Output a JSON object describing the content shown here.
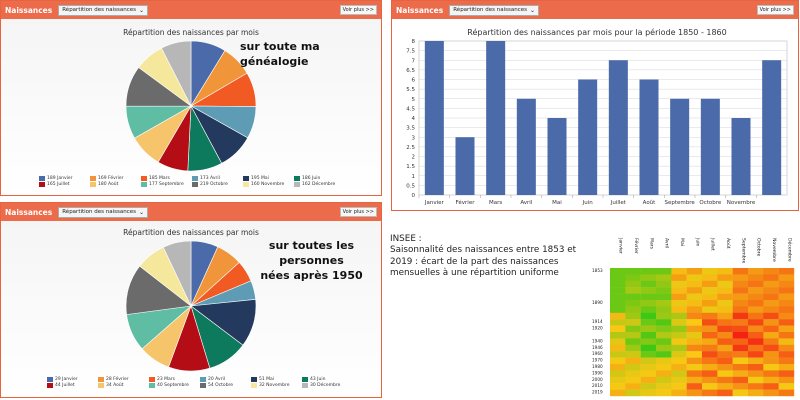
{
  "panels": {
    "pie1": {
      "header": "Naissances",
      "select": "Répartition des naissances",
      "more": "Voir plus >>",
      "title": "Répartition des naissances par mois",
      "overlay": "sur toute ma généalogie",
      "legend": [
        "189 Janvier",
        "169 Février",
        "185 Mars",
        "173 Avril",
        "195 Mai",
        "186 Juin",
        "165 Juillet",
        "180 Août",
        "177 Septembre",
        "219 Octobre",
        "160 Novembre",
        "162 Décembre"
      ]
    },
    "pie2": {
      "header": "Naissances",
      "select": "Répartition des naissances",
      "more": "Voir plus >>",
      "title": "Répartition des naissances par mois",
      "overlay_line1": "sur toutes les personnes",
      "overlay_line2": "nées après 1950",
      "legend": [
        "29 Janvier",
        "28 Février",
        "23 Mars",
        "20 Avril",
        "51 Mai",
        "43 Juin",
        "44 Juillet",
        "34 Août",
        "40 Septembre",
        "54 Octobre",
        "32 Novembre",
        "30 Décembre"
      ]
    },
    "bar": {
      "header": "Naissances",
      "select": "Répartition des naissances",
      "more": "Voir plus >>",
      "title": "Répartition des naissances par mois pour la période 1850 - 1860"
    }
  },
  "insee": {
    "line1": "INSEE :",
    "line2": "Saisonnalité des naissances entre 1853 et 2019 : écart de la part des naissances mensuelles à une répartition uniforme",
    "months": [
      "Janvier",
      "Février",
      "Mars",
      "Avril",
      "Mai",
      "Juin",
      "Juillet",
      "Août",
      "Septembre",
      "Octobre",
      "Novembre",
      "Décembre"
    ],
    "years": [
      "1853",
      "1890",
      "1914",
      "1920",
      "1940",
      "1946",
      "1960",
      "1970",
      "1980",
      "1990",
      "2000",
      "2010",
      "2019"
    ]
  },
  "colors": {
    "months": [
      "#4a6aa9",
      "#f0953a",
      "#f15a22",
      "#5d9cb4",
      "#23395d",
      "#0d7a5e",
      "#b50d16",
      "#f6c46a",
      "#5fbda3",
      "#6b6b6b",
      "#f5e79b",
      "#b7b7b7"
    ]
  },
  "chart_data": [
    {
      "type": "pie",
      "title": "Répartition des naissances par mois",
      "categories": [
        "Janvier",
        "Février",
        "Mars",
        "Avril",
        "Mai",
        "Juin",
        "Juillet",
        "Août",
        "Septembre",
        "Octobre",
        "Novembre",
        "Décembre"
      ],
      "values": [
        189,
        169,
        185,
        173,
        195,
        186,
        165,
        180,
        177,
        219,
        160,
        162
      ]
    },
    {
      "type": "pie",
      "title": "Répartition des naissances par mois",
      "categories": [
        "Janvier",
        "Février",
        "Mars",
        "Avril",
        "Mai",
        "Juin",
        "Juillet",
        "Août",
        "Septembre",
        "Octobre",
        "Novembre",
        "Décembre"
      ],
      "values": [
        29,
        28,
        23,
        20,
        51,
        43,
        44,
        34,
        40,
        54,
        32,
        30
      ]
    },
    {
      "type": "bar",
      "title": "Répartition des naissances par mois pour la période 1850 - 1860",
      "categories": [
        "Janvier",
        "Février",
        "Mars",
        "Avril",
        "Mai",
        "Juin",
        "Juillet",
        "Août",
        "Septembre",
        "Octobre",
        "Novembre",
        "Décembre"
      ],
      "values": [
        8,
        3,
        8,
        5,
        4,
        6,
        7,
        6,
        5,
        5,
        4,
        7
      ],
      "ylim": [
        0,
        8
      ],
      "yticks": [
        0,
        0.5,
        1,
        1.5,
        2,
        2.5,
        3,
        3.5,
        4,
        4.5,
        5,
        5.5,
        6,
        6.5,
        7,
        7.5,
        8
      ],
      "xtick_labels": [
        "Janvier",
        "Février",
        "Mars",
        "Avril",
        "Mai",
        "Juin",
        "Juillet",
        "Août",
        "Septembre",
        "Octobre",
        "Novembre",
        ""
      ],
      "grid": true
    }
  ]
}
